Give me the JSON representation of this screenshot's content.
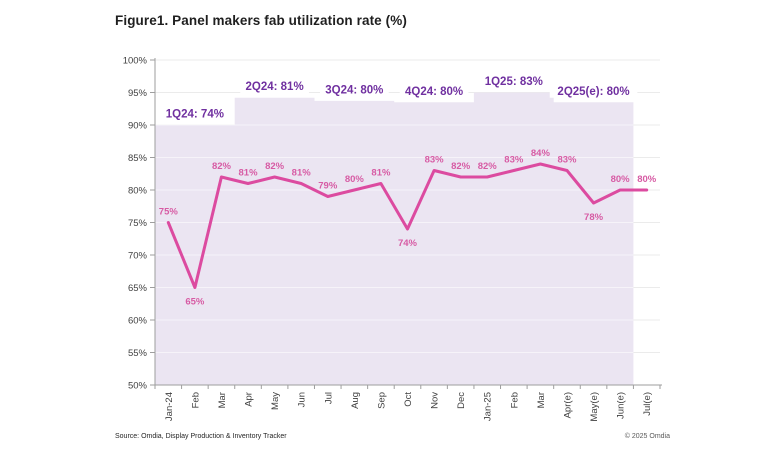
{
  "figure": {
    "title": "Figure1. Panel makers fab utilization rate (%)",
    "source_note": "Source: Omdia, Display Production & Inventory Tracker",
    "copyright_note": "© 2025 Omdia"
  },
  "chart_data": {
    "type": "line",
    "title": "Panel makers fab utilization rate (%)",
    "x_categories": [
      "Jan-24",
      "Feb",
      "Mar",
      "Apr",
      "May",
      "Jun",
      "Jul",
      "Aug",
      "Sep",
      "Oct",
      "Nov",
      "Dec",
      "Jan-25",
      "Feb",
      "Mar",
      "Apr(e)",
      "May(e)",
      "Jun(e)",
      "Jul(e)"
    ],
    "series": [
      {
        "name": "Panel makers fab utilization rate",
        "values": [
          75,
          65,
          82,
          81,
          82,
          81,
          79,
          80,
          81,
          74,
          83,
          82,
          82,
          83,
          84,
          83,
          78,
          80,
          80
        ]
      }
    ],
    "point_label_suffix": "%",
    "point_labels_below_indices": [
      1,
      9,
      16
    ],
    "ylim": [
      50,
      100
    ],
    "ytick_step": 5,
    "ytick_labels": [
      "50%",
      "55%",
      "60%",
      "65%",
      "70%",
      "75%",
      "80%",
      "85%",
      "90%",
      "95%",
      "100%"
    ],
    "grid": true,
    "legend": "none",
    "quarter_annotations": [
      {
        "label": "1Q24: 74%",
        "value": 74,
        "start_index": 0,
        "end_index": 2,
        "band_top": 90.0
      },
      {
        "label": "2Q24: 81%",
        "value": 81,
        "start_index": 3,
        "end_index": 5,
        "band_top": 94.2
      },
      {
        "label": "3Q24: 80%",
        "value": 80,
        "start_index": 6,
        "end_index": 8,
        "band_top": 93.7
      },
      {
        "label": "4Q24: 80%",
        "value": 80,
        "start_index": 9,
        "end_index": 11,
        "band_top": 93.5
      },
      {
        "label": "1Q25: 83%",
        "value": 83,
        "start_index": 12,
        "end_index": 14,
        "band_top": 95.0
      },
      {
        "label": "2Q25(e): 80%",
        "value": 80,
        "start_index": 15,
        "end_index": 17,
        "band_top": 93.5
      }
    ],
    "colors": {
      "line": "#dc4ba0",
      "point_label": "#d75ba4",
      "band_fill": "#ebe5f2",
      "quarter_label": "#7030a0",
      "axis": "#9e9e9e",
      "tick_label": "#404040",
      "gridline": "#ebebeb",
      "band_gridline": "rgba(255,255,255,0.55)",
      "label_box": "#ffffff"
    }
  }
}
